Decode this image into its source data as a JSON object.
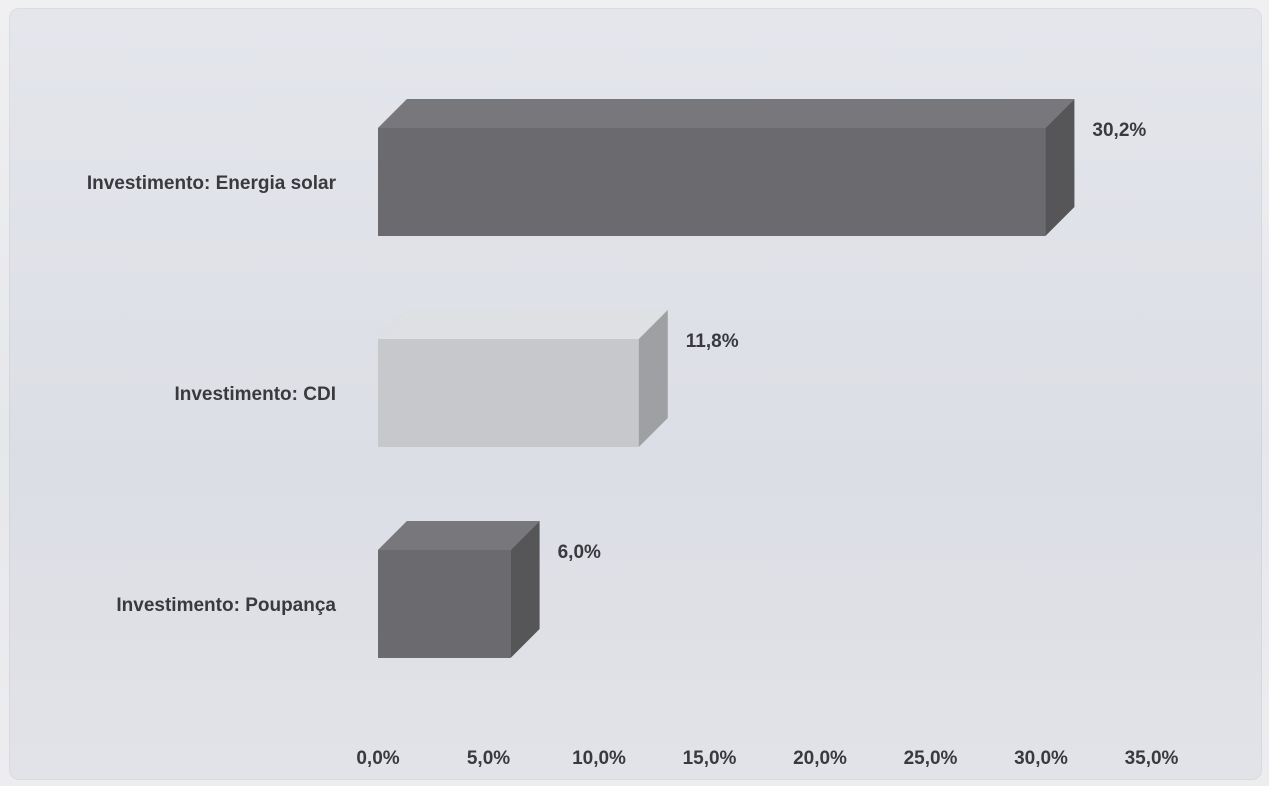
{
  "chart_data": {
    "type": "bar",
    "orientation": "horizontal",
    "style": "3d",
    "categories": [
      "Investimento: Energia solar",
      "Investimento: CDI",
      "Investimento: Poupança"
    ],
    "values": [
      30.2,
      11.8,
      6.0
    ],
    "data_labels": [
      "30,2%",
      "11,8%",
      "6,0%"
    ],
    "xlim": [
      0,
      35
    ],
    "x_ticks": [
      "0,0%",
      "5,0%",
      "10,0%",
      "15,0%",
      "20,0%",
      "25,0%",
      "30,0%",
      "35,0%"
    ],
    "grid": false,
    "legend": "none",
    "colors": {
      "Investimento: Energia solar": "#6b6b6f",
      "Investimento: CDI": "#c6c8cc",
      "Investimento: Poupança": "#6b6b6f"
    },
    "title": "",
    "xlabel": "",
    "ylabel": ""
  }
}
